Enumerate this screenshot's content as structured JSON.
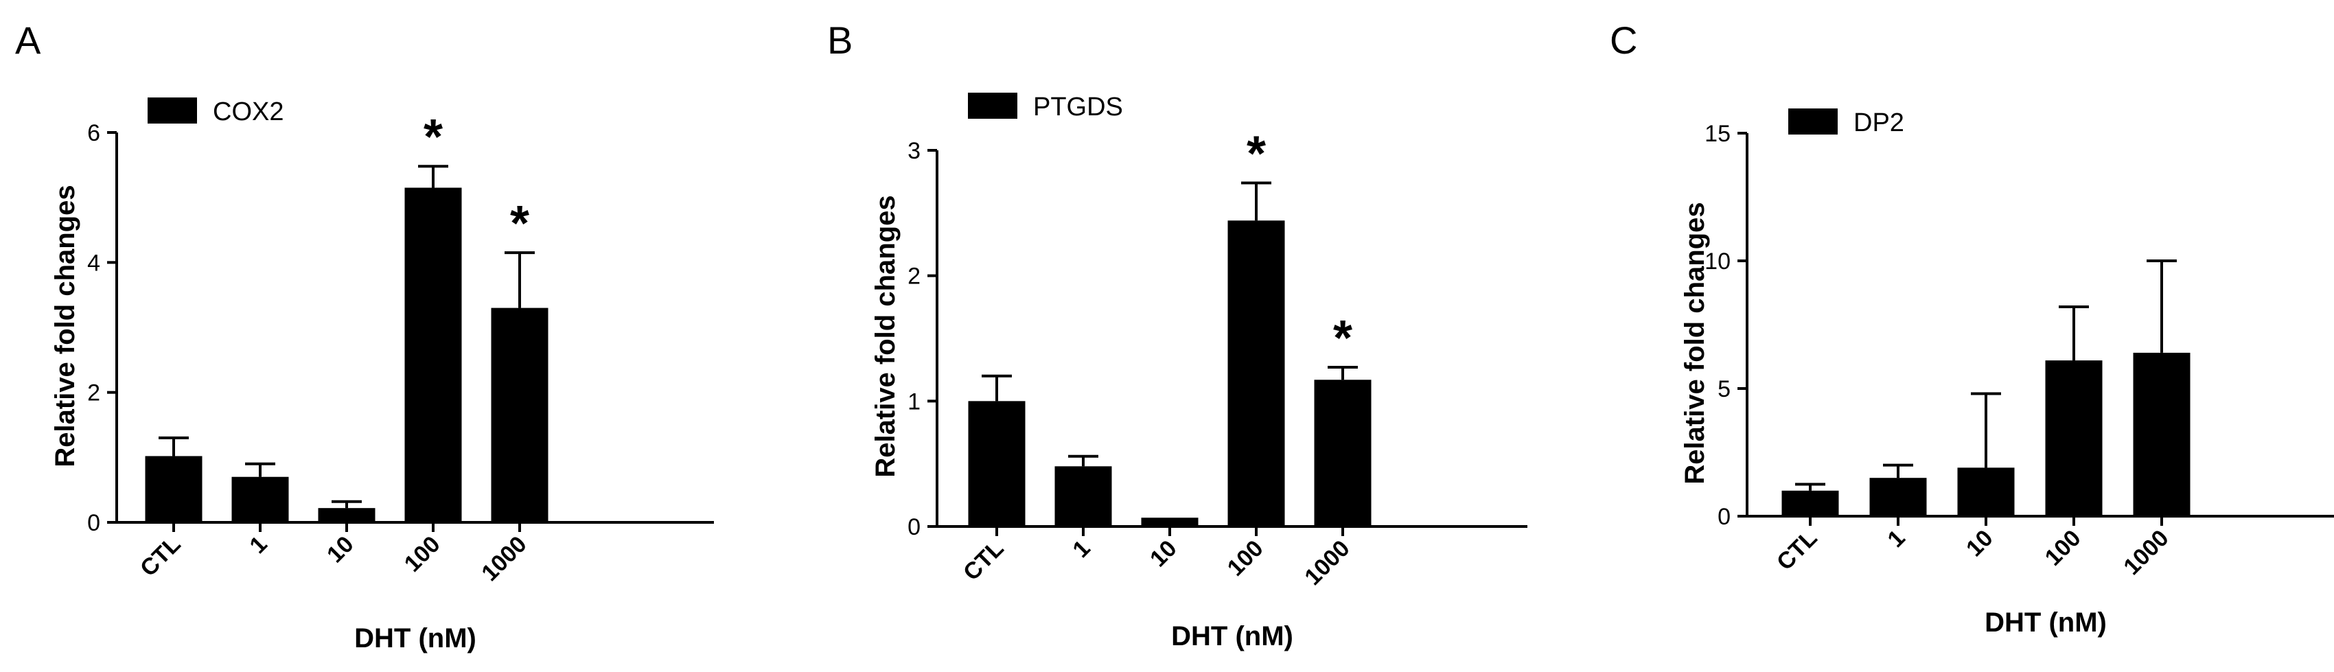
{
  "chart_data": [
    {
      "panel": "A",
      "type": "bar",
      "categories": [
        "CTL",
        "1",
        "10",
        "100",
        "1000"
      ],
      "series": [
        {
          "name": "COX2",
          "values": [
            1.02,
            0.7,
            0.22,
            5.15,
            3.3
          ],
          "errors": [
            0.28,
            0.2,
            0.1,
            0.33,
            0.85
          ]
        }
      ],
      "significance": [
        "",
        "",
        "",
        "*",
        "*"
      ],
      "xlabel": "DHT (nM)",
      "ylabel": "Relative fold changes",
      "ylim": [
        0,
        6
      ],
      "yticks": [
        0,
        2,
        4,
        6
      ],
      "legend_position": "top-left",
      "grid": false
    },
    {
      "panel": "B",
      "type": "bar",
      "categories": [
        "CTL",
        "1",
        "10",
        "100",
        "1000"
      ],
      "series": [
        {
          "name": "PTGDS",
          "values": [
            1.0,
            0.48,
            0.07,
            2.44,
            1.17
          ],
          "errors": [
            0.2,
            0.08,
            0.0,
            0.3,
            0.1
          ]
        }
      ],
      "significance": [
        "",
        "",
        "",
        "*",
        "*"
      ],
      "xlabel": "DHT (nM)",
      "ylabel": "Relative fold changes",
      "ylim": [
        0,
        3
      ],
      "yticks": [
        0,
        1,
        2,
        3
      ],
      "legend_position": "top-left",
      "grid": false
    },
    {
      "panel": "C",
      "type": "bar",
      "categories": [
        "CTL",
        "1",
        "10",
        "100",
        "1000"
      ],
      "series": [
        {
          "name": "DP2",
          "values": [
            1.0,
            1.5,
            1.9,
            6.1,
            6.4
          ],
          "errors": [
            0.25,
            0.5,
            2.9,
            2.1,
            3.6
          ]
        }
      ],
      "significance": [
        "",
        "",
        "",
        "",
        ""
      ],
      "xlabel": "DHT (nM)",
      "ylabel": "Relative fold changes",
      "ylim": [
        0,
        15
      ],
      "yticks": [
        0,
        5,
        10,
        15
      ],
      "legend_position": "top-left",
      "grid": false
    }
  ]
}
